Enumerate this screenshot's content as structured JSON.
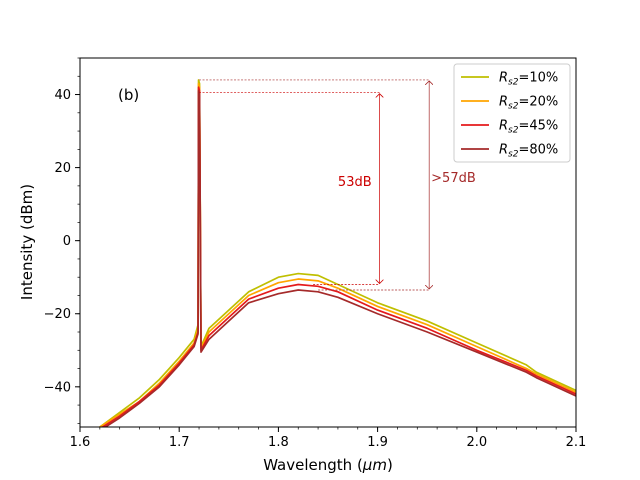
{
  "chart_data": {
    "type": "line",
    "panel_label": "(b)",
    "xlabel_main": "Wavelength (",
    "xlabel_unit": "μm",
    "xlabel_end": ")",
    "ylabel": "Intensity (dBm)",
    "xlim": [
      1.6,
      2.1
    ],
    "ylim": [
      -51,
      50
    ],
    "x_ticks": [
      1.6,
      1.7,
      1.8,
      1.9,
      2.0,
      2.1
    ],
    "x_tick_labels": [
      "1.6",
      "1.7",
      "1.8",
      "1.9",
      "2.0",
      "2.1"
    ],
    "y_ticks": [
      -40,
      -20,
      0,
      20,
      40
    ],
    "y_tick_labels": [
      "−40",
      "−20",
      "0",
      "20",
      "40"
    ],
    "grid": false,
    "legend_position": "top-right",
    "series": [
      {
        "name_prefix": "R",
        "name_sub": "s2",
        "name_value": "=10%",
        "color": "#bfbf00",
        "x": [
          1.62,
          1.64,
          1.66,
          1.68,
          1.7,
          1.715,
          1.719,
          1.7195,
          1.7205,
          1.722,
          1.73,
          1.75,
          1.77,
          1.8,
          1.82,
          1.84,
          1.86,
          1.9,
          1.95,
          2.0,
          2.05,
          2.06,
          2.1
        ],
        "y": [
          -51,
          -47,
          -43,
          -38,
          -32,
          -27,
          -23,
          44,
          43,
          -29,
          -24,
          -19,
          -14,
          -10,
          -9,
          -9.5,
          -12,
          -17,
          -22,
          -28,
          -34,
          -36,
          -41
        ]
      },
      {
        "name_prefix": "R",
        "name_sub": "s2",
        "name_value": "=20%",
        "color": "#ffa500",
        "x": [
          1.62,
          1.64,
          1.66,
          1.68,
          1.7,
          1.715,
          1.719,
          1.7195,
          1.7205,
          1.722,
          1.73,
          1.75,
          1.77,
          1.8,
          1.82,
          1.84,
          1.86,
          1.9,
          1.95,
          2.0,
          2.05,
          2.06,
          2.1
        ],
        "y": [
          -51,
          -47.5,
          -44,
          -39,
          -33,
          -28,
          -24,
          43,
          42,
          -29.5,
          -25,
          -20,
          -15,
          -11.5,
          -10.5,
          -11,
          -13,
          -18,
          -23,
          -29,
          -35,
          -36.5,
          -41.5
        ]
      },
      {
        "name_prefix": "R",
        "name_sub": "s2",
        "name_value": "=45%",
        "color": "#e41a1c",
        "x": [
          1.62,
          1.64,
          1.66,
          1.68,
          1.7,
          1.715,
          1.719,
          1.7195,
          1.7205,
          1.722,
          1.73,
          1.75,
          1.77,
          1.8,
          1.82,
          1.84,
          1.86,
          1.9,
          1.95,
          2.0,
          2.05,
          2.06,
          2.1
        ],
        "y": [
          -51.5,
          -48,
          -44,
          -39.5,
          -33.5,
          -28.5,
          -25,
          42,
          41,
          -30,
          -26,
          -21,
          -16,
          -13,
          -12,
          -12.5,
          -14,
          -19,
          -24,
          -30,
          -35.5,
          -37,
          -42
        ]
      },
      {
        "name_prefix": "R",
        "name_sub": "s2",
        "name_value": "=80%",
        "color": "#a52a2a",
        "x": [
          1.62,
          1.64,
          1.66,
          1.68,
          1.7,
          1.715,
          1.719,
          1.7195,
          1.7205,
          1.722,
          1.73,
          1.75,
          1.77,
          1.8,
          1.82,
          1.84,
          1.86,
          1.9,
          1.95,
          2.0,
          2.05,
          2.06,
          2.1
        ],
        "y": [
          -52,
          -48.5,
          -44.5,
          -40,
          -34,
          -29,
          -25.5,
          41,
          40,
          -30.5,
          -27,
          -22,
          -17,
          -14.5,
          -13.5,
          -14,
          -15.5,
          -20,
          -25,
          -30.5,
          -36,
          -37.5,
          -42.5
        ]
      }
    ],
    "annotations": [
      {
        "label": "53dB",
        "color": "#cc0000",
        "arrow_x": 1.902,
        "y_top": 40.5,
        "y_bottom": -12,
        "line_from_x": 1.72,
        "bottom_from_x": 1.835,
        "text_x": 1.877,
        "text_y": 15
      },
      {
        "label": ">57dB",
        "color": "#a52a2a",
        "arrow_x": 1.952,
        "y_top": 44,
        "y_bottom": -13.5,
        "line_from_x": 1.72,
        "bottom_from_x": 1.84,
        "text_x": 1.954,
        "text_y": 16
      }
    ]
  }
}
